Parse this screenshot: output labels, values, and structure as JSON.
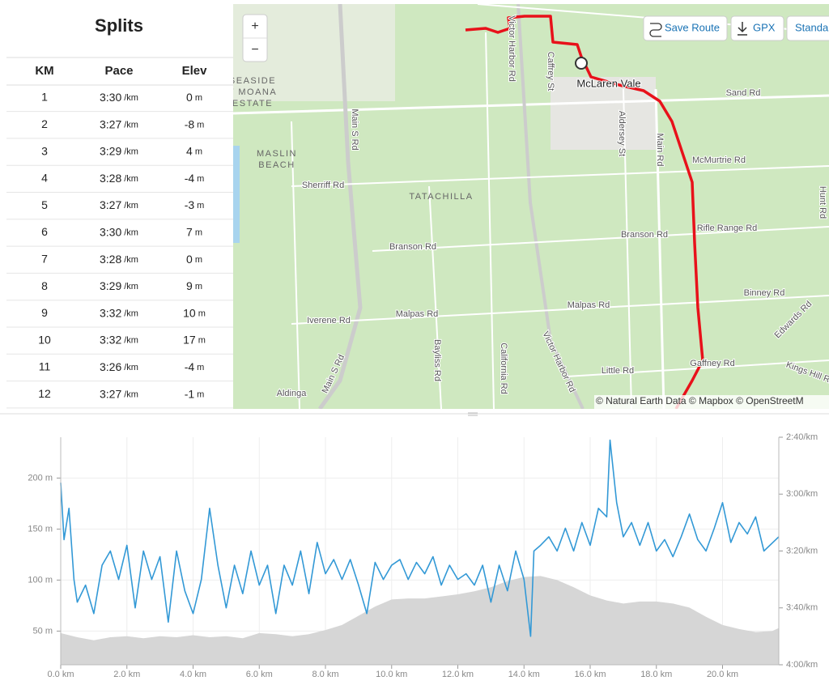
{
  "splits": {
    "title": "Splits",
    "headers": [
      "KM",
      "Pace",
      "Elev"
    ],
    "pace_unit": "/km",
    "elev_unit": "m",
    "rows": [
      [
        "1",
        "3:30",
        0
      ],
      [
        "2",
        "3:27",
        -8
      ],
      [
        "3",
        "3:29",
        4
      ],
      [
        "4",
        "3:28",
        -4
      ],
      [
        "5",
        "3:27",
        -3
      ],
      [
        "6",
        "3:30",
        7
      ],
      [
        "7",
        "3:28",
        0
      ],
      [
        "8",
        "3:29",
        9
      ],
      [
        "9",
        "3:32",
        10
      ],
      [
        "10",
        "3:32",
        17
      ],
      [
        "11",
        "3:26",
        -4
      ],
      [
        "12",
        "3:27",
        -1
      ]
    ]
  },
  "map": {
    "zoom_in": "+",
    "zoom_out": "−",
    "buttons": [
      "Save Route",
      "GPX",
      "Standa"
    ],
    "attribution": "© Natural Earth Data © Mapbox © OpenStreetM",
    "labels": [
      "Victor Harbor Rd",
      "Caffrey St",
      "McLaren Vale",
      "Sand Rd",
      "SEASIDE",
      "T MOANA",
      "ESTATE",
      "Aldersey St",
      "Main Rd",
      "McMurtrie Rd",
      "MASLIN",
      "BEACH",
      "Main S Rd",
      "Sherriff Rd",
      "TATACHILLA",
      "Branson Rd",
      "Branson Rd",
      "Rifle Range Rd",
      "Binney Rd",
      "Malpas Rd",
      "Malpas Rd",
      "Iverene Rd",
      "Edwards Rd",
      "Victor Harbor Rd",
      "Bayliss Rd",
      "California Rd",
      "Main S Rd",
      "Little Rd",
      "Gaffney Rd",
      "Kings Hill R",
      "Aldinga",
      "Hunt Rd"
    ]
  },
  "chart_data": {
    "type": "line",
    "xlim": [
      0,
      21.7
    ],
    "xticks": [
      {
        "value": 0,
        "label": "0.0 km"
      },
      {
        "value": 2,
        "label": "2.0 km"
      },
      {
        "value": 4,
        "label": "4.0 km"
      },
      {
        "value": 6,
        "label": "6.0 km"
      },
      {
        "value": 8,
        "label": "8.0 km"
      },
      {
        "value": 10,
        "label": "10.0 km"
      },
      {
        "value": 12,
        "label": "12.0 km"
      },
      {
        "value": 14,
        "label": "14.0 km"
      },
      {
        "value": 16,
        "label": "16.0 km"
      },
      {
        "value": 18,
        "label": "18.0 km"
      },
      {
        "value": 20,
        "label": "20.0 km"
      }
    ],
    "ylim": [
      17,
      240
    ],
    "yticks": [
      {
        "value": 50,
        "label": "50 m"
      },
      {
        "value": 100,
        "label": "100 m"
      },
      {
        "value": 150,
        "label": "150 m"
      },
      {
        "value": 200,
        "label": "200 m"
      }
    ],
    "y2lim": [
      240,
      160
    ],
    "y2ticks": [
      {
        "value": 160,
        "label": "2:40/km"
      },
      {
        "value": 180,
        "label": "3:00/km"
      },
      {
        "value": 200,
        "label": "3:20/km"
      },
      {
        "value": 220,
        "label": "3:40/km"
      },
      {
        "value": 240,
        "label": "4:00/km"
      }
    ],
    "grid": true,
    "series": [
      {
        "type": "area",
        "color": "#d6d6d6",
        "x": [
          0,
          0.5,
          1,
          1.5,
          2,
          2.5,
          3,
          3.5,
          4,
          4.5,
          5,
          5.5,
          6,
          6.5,
          7,
          7.5,
          8,
          8.5,
          9,
          9.5,
          10,
          10.5,
          11,
          11.5,
          12,
          12.5,
          13,
          13.5,
          14,
          14.5,
          15,
          15.5,
          16,
          16.5,
          17,
          17.5,
          18,
          18.5,
          19,
          19.5,
          20,
          20.5,
          21,
          21.5,
          21.7
        ],
        "values": [
          48,
          44,
          41,
          44,
          45,
          43,
          45,
          44,
          46,
          44,
          45,
          43,
          48,
          47,
          45,
          47,
          51,
          56,
          65,
          74,
          81,
          82,
          82,
          84,
          86,
          89,
          93,
          99,
          103,
          104,
          100,
          93,
          85,
          80,
          77,
          79,
          79,
          77,
          73,
          64,
          56,
          52,
          49,
          50,
          53
        ]
      },
      {
        "type": "line",
        "color": "#3399d6",
        "axis": "y2",
        "x": [
          0,
          0.1,
          0.25,
          0.4,
          0.5,
          0.75,
          1,
          1.25,
          1.5,
          1.75,
          2,
          2.25,
          2.5,
          2.75,
          3,
          3.25,
          3.5,
          3.75,
          4,
          4.25,
          4.5,
          4.75,
          5,
          5.25,
          5.5,
          5.75,
          6,
          6.25,
          6.5,
          6.75,
          7,
          7.25,
          7.5,
          7.75,
          8,
          8.25,
          8.5,
          8.75,
          9,
          9.25,
          9.5,
          9.75,
          10,
          10.25,
          10.5,
          10.75,
          11,
          11.25,
          11.5,
          11.75,
          12,
          12.25,
          12.5,
          12.75,
          13,
          13.25,
          13.5,
          13.75,
          14,
          14.2,
          14.3,
          14.5,
          14.75,
          15,
          15.25,
          15.5,
          15.75,
          16,
          16.25,
          16.5,
          16.6,
          16.8,
          17,
          17.25,
          17.5,
          17.75,
          18,
          18.25,
          18.5,
          18.75,
          19,
          19.25,
          19.5,
          19.75,
          20,
          20.25,
          20.5,
          20.75,
          21,
          21.25,
          21.7
        ],
        "values": [
          176,
          196,
          185,
          210,
          218,
          212,
          222,
          205,
          200,
          210,
          198,
          220,
          200,
          210,
          202,
          225,
          200,
          214,
          222,
          210,
          185,
          205,
          220,
          205,
          215,
          200,
          212,
          205,
          222,
          205,
          212,
          200,
          215,
          197,
          208,
          203,
          210,
          203,
          212,
          222,
          204,
          210,
          205,
          203,
          210,
          204,
          208,
          202,
          212,
          205,
          210,
          208,
          212,
          205,
          218,
          205,
          214,
          200,
          210,
          230,
          200,
          198,
          195,
          200,
          192,
          200,
          190,
          198,
          185,
          188,
          161,
          183,
          195,
          190,
          198,
          190,
          200,
          196,
          202,
          195,
          187,
          196,
          200,
          192,
          183,
          197,
          190,
          194,
          188,
          200,
          195
        ]
      }
    ]
  }
}
